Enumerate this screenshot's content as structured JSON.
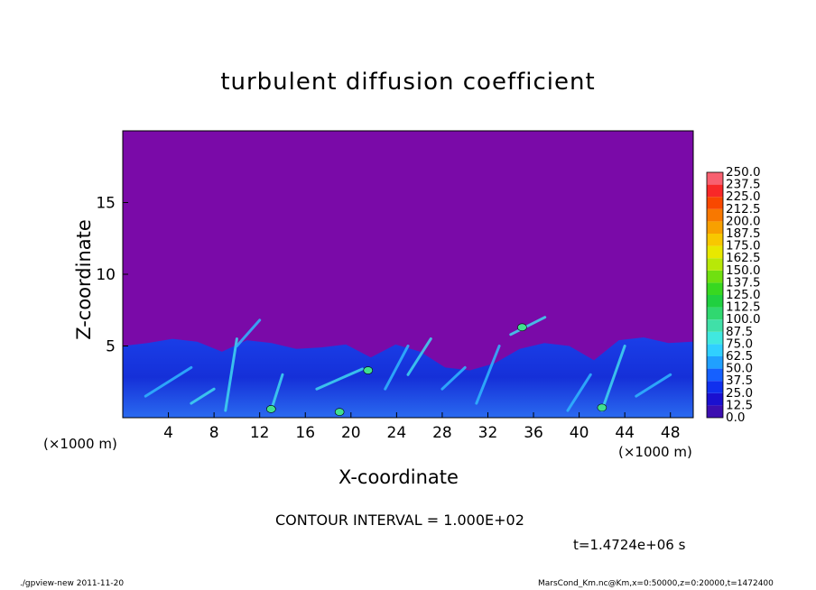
{
  "chart_data": {
    "type": "heatmap",
    "title": "turbulent diffusion coefficient",
    "xlabel": "X-coordinate",
    "ylabel": "Z-coordinate",
    "x_unit_left": "(×1000 m)",
    "x_unit_right": "(×1000 m)",
    "xlim": [
      0,
      50
    ],
    "ylim": [
      0,
      20
    ],
    "x_ticks": [
      4,
      8,
      12,
      16,
      20,
      24,
      28,
      32,
      36,
      40,
      44,
      48
    ],
    "y_ticks": [
      5,
      10,
      15
    ],
    "colorbar_levels": [
      "0.0",
      "12.5",
      "25.0",
      "37.5",
      "50.0",
      "62.5",
      "75.0",
      "87.5",
      "100.0",
      "112.5",
      "125.0",
      "137.5",
      "150.0",
      "162.5",
      "175.0",
      "187.5",
      "200.0",
      "212.5",
      "225.0",
      "237.5",
      "250.0"
    ],
    "colorbar_colors": [
      "#3c0fb0",
      "#1a10d0",
      "#1030ee",
      "#1560ff",
      "#20a0ff",
      "#30d0ff",
      "#40e8e0",
      "#40e0a8",
      "#30d870",
      "#20d040",
      "#38d820",
      "#70e010",
      "#b8e808",
      "#e8e800",
      "#f8c800",
      "#f8a000",
      "#f87800",
      "#f84800",
      "#f82828",
      "#f86070"
    ],
    "background_color": "#7a0aa8",
    "boundary_layer_top_km": [
      5,
      5.2,
      5.5,
      5.3,
      4.6,
      5.4,
      5.2,
      4.8,
      4.9,
      5.1,
      4.2,
      5.1,
      4.6,
      3.5,
      3.3,
      3.8,
      4.8,
      5.2,
      5.0,
      4.0,
      5.4,
      5.6,
      5.2,
      5.3
    ]
  },
  "contour_interval_text": "CONTOUR INTERVAL = 1.000E+02",
  "time_text": "t=1.4724e+06 s",
  "footer_left": "./gpview-new  2011-11-20",
  "footer_right": "MarsCond_Km.nc@Km,x=0:50000,z=0:20000,t=1472400"
}
